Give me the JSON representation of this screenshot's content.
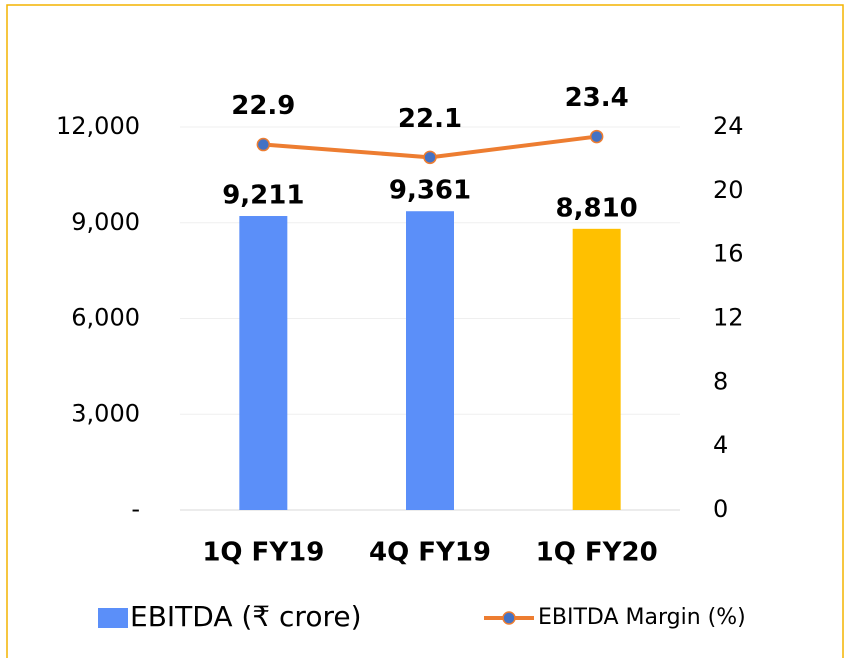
{
  "chart_data": {
    "type": "bar",
    "categories": [
      "1Q FY19",
      "4Q FY19",
      "1Q FY20"
    ],
    "series": [
      {
        "name": "EBITDA (₹ crore)",
        "type": "bar",
        "color": "#5B8FF9",
        "colors": [
          "#5B8FF9",
          "#5B8FF9",
          "#FFC000"
        ],
        "values": [
          9211,
          9361,
          8810
        ],
        "value_labels": [
          "9,211",
          "9,361",
          "8,810"
        ]
      },
      {
        "name": "EBITDA Margin (%)",
        "type": "line",
        "axis": "y2",
        "color": "#ED7D31",
        "marker_color": "#4472C4",
        "values": [
          22.9,
          22.1,
          23.4
        ]
      }
    ],
    "ylim": [
      0,
      12000
    ],
    "yticks": [
      {
        "value": 0,
        "label": "-"
      },
      {
        "value": 3000,
        "label": "3,000"
      },
      {
        "value": 6000,
        "label": "6,000"
      },
      {
        "value": 9000,
        "label": "9,000"
      },
      {
        "value": 12000,
        "label": "12,000"
      }
    ],
    "y2lim": [
      0,
      24
    ],
    "y2ticks": [
      0,
      4,
      8,
      12,
      16,
      20,
      24
    ],
    "grid": true
  }
}
